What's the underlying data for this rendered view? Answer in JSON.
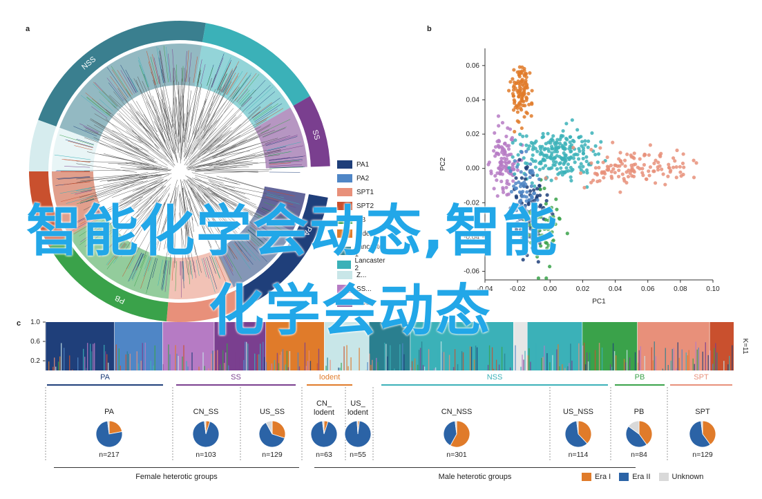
{
  "panels": {
    "a": "a",
    "b": "b",
    "c": "c"
  },
  "panel_a": {
    "ring_labels": [
      "NSS",
      "SS",
      "PA",
      "PB"
    ],
    "legend": [
      {
        "label": "PA1",
        "color": "#1f3f7a"
      },
      {
        "label": "PA2",
        "color": "#4f86c6"
      },
      {
        "label": "SPT1",
        "color": "#e8907a"
      },
      {
        "label": "SPT2",
        "color": "#c9502e"
      },
      {
        "label": "PB",
        "color": "#3aa24a"
      },
      {
        "label": "Iodent",
        "color": "#e07b2a"
      },
      {
        "label": "Lancaster 1",
        "color": "#2a7f8f"
      },
      {
        "label": "Lancaster 2",
        "color": "#3bb1b8"
      },
      {
        "label": "Z...",
        "color": "#c8e6e8"
      },
      {
        "label": "SS...",
        "color": "#b67bc4"
      },
      {
        "label": "BSSS",
        "color": "#7a3f8f"
      }
    ]
  },
  "chart_data": [
    {
      "type": "scatter",
      "xlabel": "PC1",
      "ylabel": "PC2",
      "xlim": [
        -0.04,
        0.1
      ],
      "ylim": [
        -0.065,
        0.07
      ],
      "xticks": [
        "-0.04",
        "-0.02",
        "0.00",
        "0.02",
        "0.04",
        "0.06",
        "0.08",
        "0.10"
      ],
      "yticks": [
        "0.06",
        "0.04",
        "0.02",
        "0.00",
        "-0.02",
        "-0.04",
        "-0.06"
      ],
      "clusters": [
        {
          "color": "#e07b2a",
          "cx": -0.018,
          "cy": 0.045,
          "sx": 0.003,
          "sy": 0.009,
          "n": 110
        },
        {
          "color": "#b67bc4",
          "cx": -0.028,
          "cy": 0.005,
          "sx": 0.004,
          "sy": 0.009,
          "n": 110
        },
        {
          "color": "#3bb1b8",
          "cx": 0.004,
          "cy": 0.008,
          "sx": 0.012,
          "sy": 0.007,
          "n": 220
        },
        {
          "color": "#e8907a",
          "cx": 0.05,
          "cy": 0.0,
          "sx": 0.018,
          "sy": 0.005,
          "n": 130
        },
        {
          "color": "#1f3f7a",
          "cx": -0.012,
          "cy": -0.025,
          "sx": 0.005,
          "sy": 0.013,
          "n": 110
        },
        {
          "color": "#3aa24a",
          "cx": -0.004,
          "cy": -0.035,
          "sx": 0.005,
          "sy": 0.01,
          "n": 70
        },
        {
          "color": "#4f86c6",
          "cx": -0.016,
          "cy": -0.012,
          "sx": 0.004,
          "sy": 0.01,
          "n": 60
        }
      ]
    },
    {
      "type": "bar",
      "yticks": [
        "1.0",
        "0.6",
        "0.2"
      ],
      "right_label": "K=11",
      "segments": [
        {
          "color": "#1f3f7a",
          "from": 0.0,
          "to": 0.1
        },
        {
          "color": "#4f86c6",
          "from": 0.1,
          "to": 0.17
        },
        {
          "color": "#b67bc4",
          "from": 0.17,
          "to": 0.245
        },
        {
          "color": "#7a3f8f",
          "from": 0.245,
          "to": 0.32
        },
        {
          "color": "#e07b2a",
          "from": 0.32,
          "to": 0.405
        },
        {
          "color": "#c8e6e8",
          "from": 0.405,
          "to": 0.47
        },
        {
          "color": "#2a7f8f",
          "from": 0.47,
          "to": 0.53
        },
        {
          "color": "#3bb1b8",
          "from": 0.53,
          "to": 0.68
        },
        {
          "color": "#e6e6e6",
          "from": 0.68,
          "to": 0.7
        },
        {
          "color": "#3bb1b8",
          "from": 0.7,
          "to": 0.78
        },
        {
          "color": "#3aa24a",
          "from": 0.78,
          "to": 0.86
        },
        {
          "color": "#e8907a",
          "from": 0.86,
          "to": 0.965
        },
        {
          "color": "#c9502e",
          "from": 0.965,
          "to": 1.0
        }
      ]
    },
    {
      "type": "pie",
      "groups": [
        {
          "label": "PA",
          "color": "#1f3f7a"
        },
        {
          "label": "SS",
          "color": "#7a3f8f"
        },
        {
          "label": "Iodent",
          "color": "#e07b2a"
        },
        {
          "label": "NSS",
          "color": "#3bb1b8"
        },
        {
          "label": "PB",
          "color": "#3aa24a"
        },
        {
          "label": "SPT",
          "color": "#e8907a"
        }
      ],
      "pies": [
        {
          "title": "PA",
          "n": "n=217",
          "era1": 0.22,
          "era2": 0.76,
          "unknown": 0.02
        },
        {
          "title": "CN_SS",
          "n": "n=103",
          "era1": 0.05,
          "era2": 0.93,
          "unknown": 0.02
        },
        {
          "title": "US_SS",
          "n": "n=129",
          "era1": 0.3,
          "era2": 0.62,
          "unknown": 0.08
        },
        {
          "title": "CN_ lodent",
          "n": "n=63",
          "era1": 0.05,
          "era2": 0.93,
          "unknown": 0.02
        },
        {
          "title": "US_ lodent",
          "n": "n=55",
          "era1": 0.02,
          "era2": 0.97,
          "unknown": 0.01
        },
        {
          "title": "CN_NSS",
          "n": "n=301",
          "era1": 0.58,
          "era2": 0.4,
          "unknown": 0.02
        },
        {
          "title": "US_NSS",
          "n": "n=114",
          "era1": 0.38,
          "era2": 0.6,
          "unknown": 0.02
        },
        {
          "title": "PB",
          "n": "n=84",
          "era1": 0.4,
          "era2": 0.45,
          "unknown": 0.15
        },
        {
          "title": "SPT",
          "n": "n=129",
          "era1": 0.4,
          "era2": 0.58,
          "unknown": 0.02
        }
      ],
      "bottom_labels": [
        "Female heterotic groups",
        "Male heterotic groups"
      ],
      "legend": [
        {
          "label": "Era I",
          "color": "#e07b2a"
        },
        {
          "label": "Era II",
          "color": "#2b63a6"
        },
        {
          "label": "Unknown",
          "color": "#d9d9d9"
        }
      ]
    }
  ],
  "overlay": {
    "line1": "智能化学会动态,智能",
    "line2": "化学会动态"
  }
}
